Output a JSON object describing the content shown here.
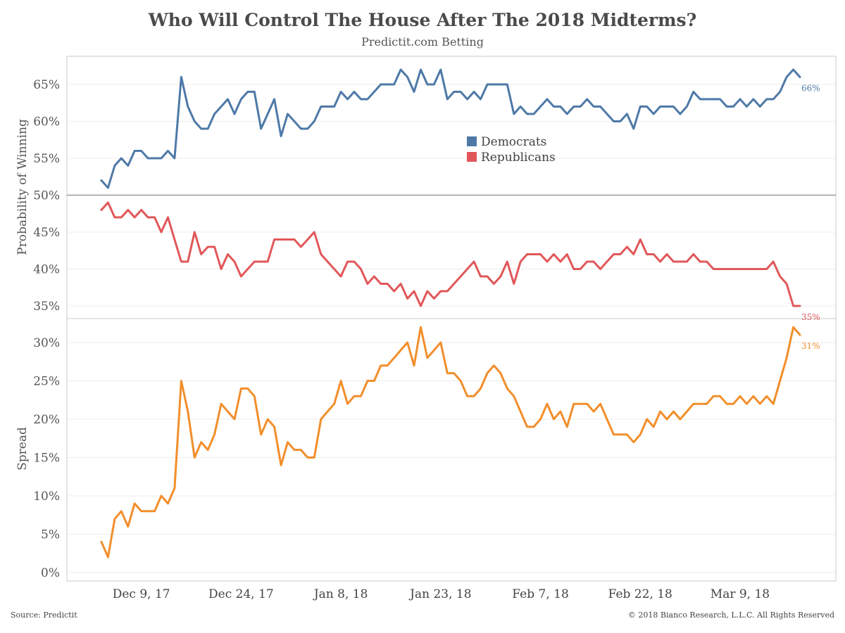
{
  "header": {
    "title": "Who Will Control The House After The 2018 Midterms?",
    "subtitle": "Predictit.com Betting"
  },
  "footer": {
    "source": "Source: Predictit",
    "copyright": "© 2018 Bianco Research, L.L.C. All Rights Reserved"
  },
  "colors": {
    "democrats": "#4e79a7",
    "republicans": "#e15759",
    "spread": "#f28e2b"
  },
  "chart_data": [
    {
      "type": "line",
      "ylabel": "Probability of Winning",
      "yticks": [
        "35%",
        "40%",
        "45%",
        "50%",
        "55%",
        "60%",
        "65%"
      ],
      "ylim": [
        34,
        68
      ],
      "reference_line": 50,
      "legend": {
        "placement": "center",
        "entries": [
          "Democrats",
          "Republicans"
        ]
      },
      "series": [
        {
          "name": "Democrats",
          "end_label": "66%",
          "values": [
            52,
            51,
            54,
            55,
            54,
            56,
            56,
            55,
            55,
            55,
            56,
            55,
            66,
            62,
            60,
            59,
            59,
            61,
            62,
            63,
            61,
            63,
            64,
            64,
            59,
            61,
            63,
            58,
            61,
            60,
            59,
            59,
            60,
            62,
            62,
            62,
            64,
            63,
            64,
            63,
            63,
            64,
            65,
            65,
            65,
            67,
            66,
            64,
            67,
            65,
            65,
            67,
            63,
            64,
            64,
            63,
            64,
            63,
            65,
            65,
            65,
            65,
            61,
            62,
            61,
            61,
            62,
            63,
            62,
            62,
            61,
            62,
            62,
            63,
            62,
            62,
            61,
            60,
            60,
            61,
            59,
            62,
            62,
            61,
            62,
            62,
            62,
            61,
            62,
            64,
            63,
            63,
            63,
            63,
            62,
            62,
            63,
            62,
            63,
            62,
            63,
            63,
            64,
            66,
            67,
            66
          ]
        },
        {
          "name": "Republicans",
          "end_label": "35%",
          "values": [
            48,
            49,
            47,
            47,
            48,
            47,
            48,
            47,
            47,
            45,
            47,
            44,
            41,
            41,
            45,
            42,
            43,
            43,
            40,
            42,
            41,
            39,
            40,
            41,
            41,
            41,
            44,
            44,
            44,
            44,
            43,
            44,
            45,
            42,
            41,
            40,
            39,
            41,
            41,
            40,
            38,
            39,
            38,
            38,
            37,
            38,
            36,
            37,
            35,
            37,
            36,
            37,
            37,
            38,
            39,
            40,
            41,
            39,
            39,
            38,
            39,
            41,
            38,
            41,
            42,
            42,
            42,
            41,
            42,
            41,
            42,
            40,
            40,
            41,
            41,
            40,
            41,
            42,
            42,
            43,
            42,
            44,
            42,
            42,
            41,
            42,
            41,
            41,
            41,
            42,
            41,
            41,
            40,
            40,
            40,
            40,
            40,
            40,
            40,
            40,
            40,
            41,
            39,
            38,
            35,
            35
          ]
        }
      ]
    },
    {
      "type": "line",
      "ylabel": "Spread",
      "yticks": [
        "0%",
        "5%",
        "10%",
        "15%",
        "20%",
        "25%",
        "30%"
      ],
      "ylim": [
        -1,
        33
      ],
      "series": [
        {
          "name": "Spread",
          "end_label": "31%",
          "values": [
            4,
            2,
            7,
            8,
            6,
            9,
            8,
            8,
            8,
            10,
            9,
            11,
            25,
            21,
            15,
            17,
            16,
            18,
            22,
            21,
            20,
            24,
            24,
            23,
            18,
            20,
            19,
            14,
            17,
            16,
            16,
            15,
            15,
            20,
            21,
            22,
            25,
            22,
            23,
            23,
            25,
            25,
            27,
            27,
            28,
            29,
            30,
            27,
            32,
            28,
            29,
            30,
            26,
            26,
            25,
            23,
            23,
            24,
            26,
            27,
            26,
            24,
            23,
            21,
            19,
            19,
            20,
            22,
            20,
            21,
            19,
            22,
            22,
            22,
            21,
            22,
            20,
            18,
            18,
            18,
            17,
            18,
            20,
            19,
            21,
            20,
            21,
            20,
            21,
            22,
            22,
            22,
            23,
            23,
            22,
            22,
            23,
            22,
            23,
            22,
            23,
            22,
            25,
            28,
            32,
            31
          ]
        }
      ],
      "xticks": [
        "Dec 9, 17",
        "Dec 24, 17",
        "Jan 8, 18",
        "Jan 23, 18",
        "Feb 7, 18",
        "Feb 22, 18",
        "Mar 9, 18"
      ]
    }
  ]
}
